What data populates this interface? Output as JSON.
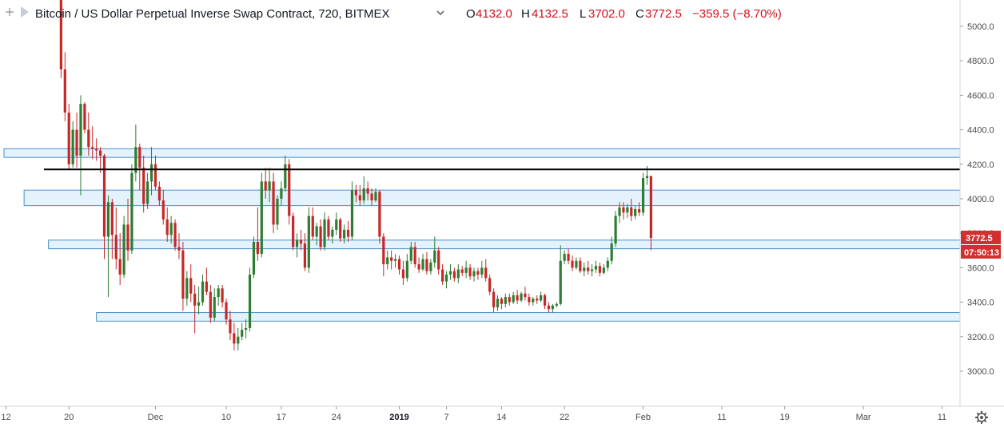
{
  "header": {
    "title": "Bitcoin / US Dollar Perpetual Inverse Swap Contract, 720, BITMEX",
    "ohlc": [
      {
        "label": "O",
        "value": "4132.0"
      },
      {
        "label": "H",
        "value": "4132.5"
      },
      {
        "label": "L",
        "value": "3702.0"
      },
      {
        "label": "C",
        "value": "3772.5"
      }
    ],
    "change": "−359.5 (−8.70%)"
  },
  "price_tags": {
    "last_price": "3772.5",
    "countdown": "07:50:13"
  },
  "colors": {
    "up": "#2e7d32",
    "down": "#c62828",
    "zone_fill": "#e3f2fd",
    "zone_border": "#4a90c8",
    "resistance_line": "#000000",
    "tag_bg": "#d32f2f"
  },
  "icons": {
    "crosshair": "crosshair-icon",
    "settings": "gear-icon",
    "collapse": "chevron-down-icon"
  },
  "chart_data": {
    "type": "candlestick",
    "title": "Bitcoin / US Dollar Perpetual Inverse Swap Contract, 720, BITMEX",
    "y_axis": {
      "ticks": [
        "5000.0",
        "4800.0",
        "4600.0",
        "4400.0",
        "4200.0",
        "4000.0",
        "3800.0",
        "3600.0",
        "3400.0",
        "3200.0",
        "3000.0"
      ],
      "range": [
        2810,
        5150
      ],
      "position": "right"
    },
    "x_axis": {
      "ticks": [
        {
          "label": "12",
          "bold": false,
          "day": 0
        },
        {
          "label": "20",
          "bold": false,
          "day": 8
        },
        {
          "label": "Dec",
          "bold": false,
          "day": 19
        },
        {
          "label": "10",
          "bold": false,
          "day": 28
        },
        {
          "label": "17",
          "bold": false,
          "day": 35
        },
        {
          "label": "24",
          "bold": false,
          "day": 42
        },
        {
          "label": "2019",
          "bold": true,
          "day": 50
        },
        {
          "label": "7",
          "bold": false,
          "day": 56
        },
        {
          "label": "14",
          "bold": false,
          "day": 63
        },
        {
          "label": "22",
          "bold": false,
          "day": 71
        },
        {
          "label": "Feb",
          "bold": false,
          "day": 81
        },
        {
          "label": "11",
          "bold": false,
          "day": 91
        },
        {
          "label": "19",
          "bold": false,
          "day": 99
        },
        {
          "label": "Mar",
          "bold": false,
          "day": 109
        },
        {
          "label": "11",
          "bold": false,
          "day": 119
        }
      ]
    },
    "grid": false,
    "horizontal_line": 4170,
    "zones": [
      {
        "low": 4240,
        "high": 4290,
        "start_day": -0.6
      },
      {
        "low": 3960,
        "high": 4050,
        "start_day": 2.3
      },
      {
        "low": 3710,
        "high": 3760,
        "start_day": 5.4
      },
      {
        "low": 3290,
        "high": 3340,
        "start_day": 11.5
      }
    ],
    "candles_ohlc_start_day": 7.0,
    "candles_per_day": 2,
    "candles": [
      [
        5250,
        5300,
        4700,
        4750
      ],
      [
        4750,
        4850,
        4450,
        4500
      ],
      [
        4500,
        4550,
        4170,
        4200
      ],
      [
        4200,
        4450,
        4180,
        4400
      ],
      [
        4400,
        4500,
        4180,
        4250
      ],
      [
        4250,
        4600,
        4020,
        4550
      ],
      [
        4550,
        4560,
        4380,
        4400
      ],
      [
        4400,
        4500,
        4250,
        4300
      ],
      [
        4300,
        4420,
        4230,
        4290
      ],
      [
        4290,
        4350,
        4220,
        4280
      ],
      [
        4280,
        4300,
        4150,
        4250
      ],
      [
        4250,
        4260,
        3650,
        3780
      ],
      [
        3780,
        4020,
        3430,
        3980
      ],
      [
        3980,
        4000,
        3650,
        3790
      ],
      [
        3790,
        3950,
        3590,
        3650
      ],
      [
        3650,
        3800,
        3500,
        3560
      ],
      [
        3560,
        3900,
        3540,
        3850
      ],
      [
        3850,
        4000,
        3640,
        3700
      ],
      [
        3700,
        4200,
        3680,
        4150
      ],
      [
        4150,
        4430,
        4100,
        4300
      ],
      [
        4300,
        4320,
        4050,
        4180
      ],
      [
        4180,
        4250,
        3920,
        3970
      ],
      [
        3970,
        4150,
        3940,
        4100
      ],
      [
        4100,
        4300,
        4020,
        4200
      ],
      [
        4200,
        4250,
        4050,
        4070
      ],
      [
        4070,
        4100,
        3960,
        3990
      ],
      [
        3990,
        4050,
        3850,
        3880
      ],
      [
        3880,
        3950,
        3750,
        3790
      ],
      [
        3790,
        3900,
        3740,
        3860
      ],
      [
        3860,
        3880,
        3700,
        3720
      ],
      [
        3720,
        3800,
        3650,
        3700
      ],
      [
        3700,
        3750,
        3350,
        3420
      ],
      [
        3420,
        3580,
        3380,
        3540
      ],
      [
        3540,
        3620,
        3400,
        3450
      ],
      [
        3450,
        3500,
        3220,
        3380
      ],
      [
        3380,
        3490,
        3330,
        3400
      ],
      [
        3400,
        3560,
        3380,
        3520
      ],
      [
        3520,
        3600,
        3440,
        3460
      ],
      [
        3460,
        3500,
        3280,
        3310
      ],
      [
        3310,
        3480,
        3290,
        3430
      ],
      [
        3430,
        3500,
        3380,
        3480
      ],
      [
        3480,
        3500,
        3370,
        3400
      ],
      [
        3400,
        3420,
        3270,
        3300
      ],
      [
        3300,
        3350,
        3180,
        3220
      ],
      [
        3220,
        3280,
        3120,
        3160
      ],
      [
        3160,
        3250,
        3120,
        3200
      ],
      [
        3200,
        3280,
        3180,
        3240
      ],
      [
        3240,
        3300,
        3190,
        3250
      ],
      [
        3250,
        3600,
        3230,
        3560
      ],
      [
        3560,
        3780,
        3540,
        3750
      ],
      [
        3750,
        3950,
        3640,
        3680
      ],
      [
        3680,
        4150,
        3660,
        4100
      ],
      [
        4100,
        4180,
        4000,
        4050
      ],
      [
        4050,
        4180,
        3980,
        4100
      ],
      [
        4100,
        4150,
        3800,
        3850
      ],
      [
        3850,
        4020,
        3820,
        4000
      ],
      [
        4000,
        4100,
        3960,
        4060
      ],
      [
        4060,
        4250,
        4040,
        4200
      ],
      [
        4200,
        4230,
        3850,
        3900
      ],
      [
        3900,
        3920,
        3700,
        3720
      ],
      [
        3720,
        3800,
        3660,
        3760
      ],
      [
        3760,
        3820,
        3700,
        3740
      ],
      [
        3740,
        3800,
        3580,
        3600
      ],
      [
        3600,
        3950,
        3570,
        3900
      ],
      [
        3900,
        3950,
        3760,
        3780
      ],
      [
        3780,
        3860,
        3730,
        3840
      ],
      [
        3840,
        3880,
        3700,
        3720
      ],
      [
        3720,
        3920,
        3700,
        3880
      ],
      [
        3880,
        3900,
        3760,
        3780
      ],
      [
        3780,
        3840,
        3740,
        3820
      ],
      [
        3820,
        3920,
        3790,
        3880
      ],
      [
        3880,
        3890,
        3750,
        3770
      ],
      [
        3770,
        3850,
        3740,
        3820
      ],
      [
        3820,
        3870,
        3750,
        3780
      ],
      [
        3780,
        4100,
        3760,
        4050
      ],
      [
        4050,
        4080,
        3980,
        4020
      ],
      [
        4020,
        4080,
        3960,
        3990
      ],
      [
        3990,
        4130,
        3970,
        4060
      ],
      [
        4060,
        4100,
        3990,
        4030
      ],
      [
        4030,
        4060,
        3960,
        3990
      ],
      [
        3990,
        4060,
        3980,
        4040
      ],
      [
        4040,
        4050,
        3740,
        3780
      ],
      [
        3780,
        3800,
        3550,
        3620
      ],
      [
        3620,
        3700,
        3590,
        3660
      ],
      [
        3660,
        3700,
        3590,
        3640
      ],
      [
        3640,
        3680,
        3600,
        3650
      ],
      [
        3650,
        3670,
        3560,
        3590
      ],
      [
        3590,
        3640,
        3500,
        3540
      ],
      [
        3540,
        3680,
        3520,
        3640
      ],
      [
        3640,
        3750,
        3620,
        3720
      ],
      [
        3720,
        3750,
        3600,
        3620
      ],
      [
        3620,
        3660,
        3570,
        3590
      ],
      [
        3590,
        3680,
        3580,
        3650
      ],
      [
        3650,
        3690,
        3560,
        3580
      ],
      [
        3580,
        3650,
        3560,
        3630
      ],
      [
        3630,
        3780,
        3600,
        3700
      ],
      [
        3700,
        3720,
        3560,
        3590
      ],
      [
        3590,
        3620,
        3500,
        3520
      ],
      [
        3520,
        3580,
        3480,
        3560
      ],
      [
        3560,
        3620,
        3530,
        3580
      ],
      [
        3580,
        3600,
        3520,
        3540
      ],
      [
        3540,
        3620,
        3510,
        3590
      ],
      [
        3590,
        3610,
        3550,
        3570
      ],
      [
        3570,
        3640,
        3540,
        3600
      ],
      [
        3600,
        3620,
        3530,
        3550
      ],
      [
        3550,
        3600,
        3520,
        3580
      ],
      [
        3580,
        3600,
        3530,
        3560
      ],
      [
        3560,
        3640,
        3540,
        3600
      ],
      [
        3600,
        3650,
        3520,
        3540
      ],
      [
        3540,
        3560,
        3440,
        3460
      ],
      [
        3460,
        3480,
        3340,
        3370
      ],
      [
        3370,
        3440,
        3350,
        3420
      ],
      [
        3420,
        3430,
        3360,
        3390
      ],
      [
        3390,
        3450,
        3370,
        3430
      ],
      [
        3430,
        3450,
        3380,
        3400
      ],
      [
        3400,
        3460,
        3390,
        3440
      ],
      [
        3440,
        3470,
        3390,
        3410
      ],
      [
        3410,
        3460,
        3400,
        3450
      ],
      [
        3450,
        3490,
        3410,
        3430
      ],
      [
        3430,
        3450,
        3380,
        3400
      ],
      [
        3400,
        3430,
        3380,
        3420
      ],
      [
        3420,
        3440,
        3390,
        3410
      ],
      [
        3410,
        3460,
        3400,
        3440
      ],
      [
        3440,
        3450,
        3360,
        3380
      ],
      [
        3380,
        3400,
        3340,
        3360
      ],
      [
        3360,
        3390,
        3340,
        3380
      ],
      [
        3380,
        3400,
        3370,
        3390
      ],
      [
        3390,
        3730,
        3380,
        3640
      ],
      [
        3640,
        3700,
        3620,
        3680
      ],
      [
        3680,
        3710,
        3620,
        3640
      ],
      [
        3640,
        3670,
        3580,
        3600
      ],
      [
        3600,
        3660,
        3590,
        3640
      ],
      [
        3640,
        3660,
        3570,
        3580
      ],
      [
        3580,
        3630,
        3550,
        3600
      ],
      [
        3600,
        3640,
        3560,
        3580
      ],
      [
        3580,
        3620,
        3550,
        3590
      ],
      [
        3590,
        3640,
        3570,
        3610
      ],
      [
        3610,
        3630,
        3550,
        3570
      ],
      [
        3570,
        3620,
        3560,
        3600
      ],
      [
        3600,
        3660,
        3580,
        3640
      ],
      [
        3640,
        3780,
        3620,
        3740
      ],
      [
        3740,
        3930,
        3720,
        3900
      ],
      [
        3900,
        3980,
        3860,
        3950
      ],
      [
        3950,
        3980,
        3880,
        3920
      ],
      [
        3920,
        3970,
        3890,
        3950
      ],
      [
        3950,
        4000,
        3870,
        3900
      ],
      [
        3900,
        3960,
        3880,
        3940
      ],
      [
        3940,
        3980,
        3900,
        3920
      ],
      [
        3920,
        4150,
        3900,
        4120
      ],
      [
        4120,
        4190,
        4080,
        4132
      ],
      [
        4132,
        4132.5,
        3702,
        3772.5
      ]
    ]
  }
}
